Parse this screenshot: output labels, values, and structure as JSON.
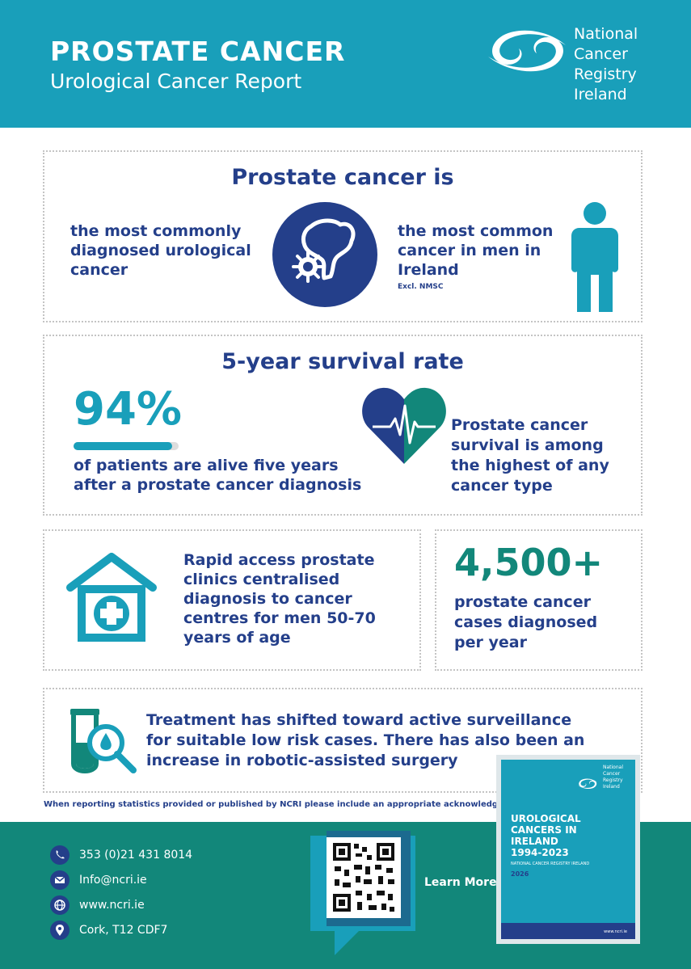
{
  "header": {
    "title": "PROSTATE CANCER",
    "subtitle": "Urological Cancer Report",
    "logo_lines": [
      "National",
      "Cancer",
      "Registry",
      "Ireland"
    ]
  },
  "section1": {
    "heading": "Prostate cancer is",
    "left_text": [
      "the most commonly",
      "diagnosed urological",
      "cancer"
    ],
    "right_text": [
      "the most common",
      "cancer in men in",
      "Ireland"
    ],
    "note": "Excl. NMSC"
  },
  "section2": {
    "heading": "5-year survival rate",
    "stat": "94%",
    "stat_fraction": 0.94,
    "left_text": [
      "of patients are alive five years",
      "after a prostate cancer diagnosis"
    ],
    "right_text": [
      "Prostate cancer",
      "survival is among",
      "the highest of any",
      "cancer type"
    ]
  },
  "section3": {
    "text": [
      "Rapid access prostate",
      "clinics centralised",
      "diagnosis to cancer",
      "centres for men 50-70",
      "years of age"
    ]
  },
  "section4": {
    "stat": "4,500+",
    "text": [
      "prostate cancer",
      "cases diagnosed",
      "per year"
    ]
  },
  "section5": {
    "text": [
      "Treatment has shifted toward active surveillance",
      "for suitable low risk cases. There has also been an",
      "increase in robotic-assisted surgery"
    ]
  },
  "acknowledgement": "When reporting statistics provided or published by NCRI please include an appropriate acknowledgement",
  "footer": {
    "phone": "353 (0)21 431 8014",
    "email": "Info@ncri.ie",
    "web": "www.ncri.ie",
    "address": "Cork, T12 CDF7",
    "learn_more": "Learn More"
  },
  "report_cover": {
    "logo_lines": [
      "National",
      "Cancer",
      "Registry",
      "Ireland"
    ],
    "title_lines": [
      "UROLOGICAL",
      "CANCERS IN",
      "IRELAND",
      "1994-2023"
    ],
    "org": "NATIONAL CANCER REGISTRY IRELAND",
    "year": "2026",
    "url": "www.ncri.ie"
  },
  "colors": {
    "teal": "#199fba",
    "navy": "#243f8a",
    "green": "#12877a"
  }
}
